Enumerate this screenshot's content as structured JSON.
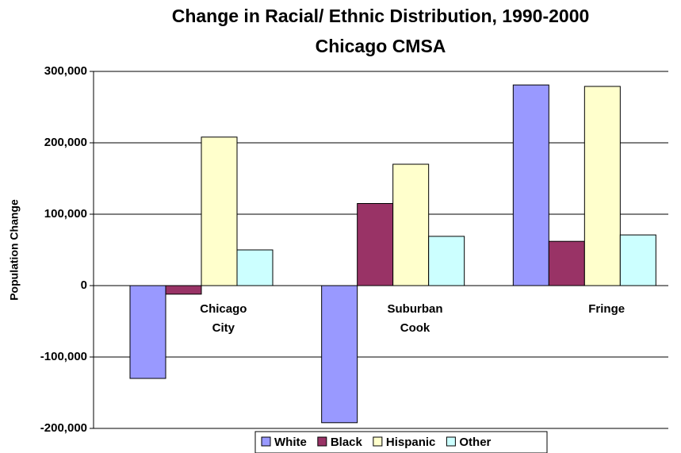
{
  "chart_data": {
    "type": "bar",
    "title": "Change in Racial/ Ethnic Distribution, 1990-2000",
    "subtitle": "Chicago CMSA",
    "y_label": "Population Change",
    "categories": [
      "Chicago City",
      "Suburban Cook",
      "Fringe"
    ],
    "series": [
      {
        "name": "White",
        "color": "#9999ff",
        "values": [
          -130000,
          -192000,
          281000
        ]
      },
      {
        "name": "Black",
        "color": "#993366",
        "values": [
          -12000,
          115000,
          62000
        ]
      },
      {
        "name": "Hispanic",
        "color": "#ffffcc",
        "values": [
          208000,
          170000,
          279000
        ]
      },
      {
        "name": "Other",
        "color": "#ccffff",
        "values": [
          50000,
          69000,
          71000
        ]
      }
    ],
    "ylim": [
      -200000,
      300000
    ],
    "yticks": [
      {
        "value": -200000,
        "label": "-200,000"
      },
      {
        "value": -100000,
        "label": "-100,000"
      },
      0,
      {
        "value": 100000,
        "label": "100,000"
      },
      {
        "value": 200000,
        "label": "200,000"
      },
      {
        "value": 300000,
        "label": "300,000"
      }
    ],
    "grid": true
  }
}
